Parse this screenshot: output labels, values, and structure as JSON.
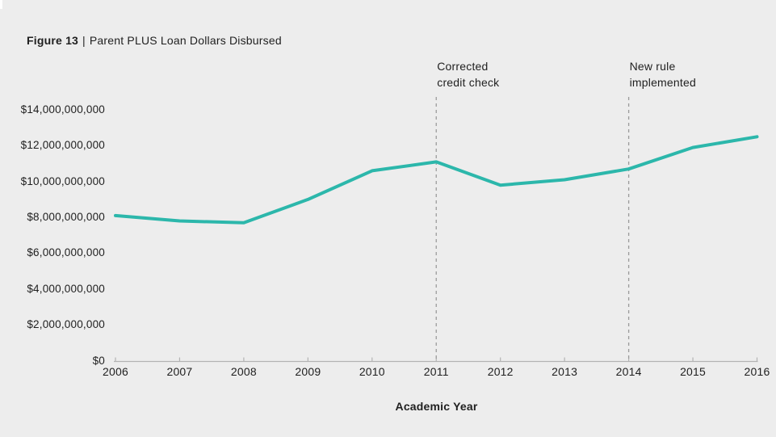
{
  "canvas": {
    "background_color": "#ededed",
    "notch_color": "#ffffff",
    "text_color": "#1f1f1f"
  },
  "title": {
    "figure_label": "Figure 13",
    "separator": "|",
    "caption": "Parent PLUS Loan Dollars Disbursed"
  },
  "chart_data": {
    "type": "line",
    "title": "Figure 13 | Parent PLUS Loan Dollars Disbursed",
    "series_name": "Parent PLUS loan dollars disbursed",
    "x": [
      2006,
      2007,
      2008,
      2009,
      2010,
      2011,
      2012,
      2013,
      2014,
      2015,
      2016
    ],
    "values": [
      8100000000,
      7800000000,
      7700000000,
      9000000000,
      10600000000,
      11100000000,
      9800000000,
      10100000000,
      10700000000,
      11900000000,
      12500000000
    ],
    "xlabel": "Academic Year",
    "ylabel": "",
    "ylim": [
      0,
      14000000000
    ],
    "ytick_step": 2000000000,
    "ytick_labels": [
      "$0",
      "$2,000,000,000",
      "$4,000,000,000",
      "$6,000,000,000",
      "$8,000,000,000",
      "$10,000,000,000",
      "$12,000,000,000",
      "$14,000,000,000"
    ],
    "xtick_labels": [
      "2006",
      "2007",
      "2008",
      "2009",
      "2010",
      "2011",
      "2012",
      "2013",
      "2014",
      "2015",
      "2016"
    ],
    "grid": false,
    "legend": false,
    "line_color": "#2cb7ab",
    "line_width": 4,
    "axis_color": "#b3b3b3",
    "annotation_line_color": "#9b9b9b",
    "annotations": [
      {
        "x": 2011,
        "lines": [
          "Corrected",
          "credit check"
        ]
      },
      {
        "x": 2014,
        "lines": [
          "New rule",
          "implemented"
        ]
      }
    ]
  }
}
